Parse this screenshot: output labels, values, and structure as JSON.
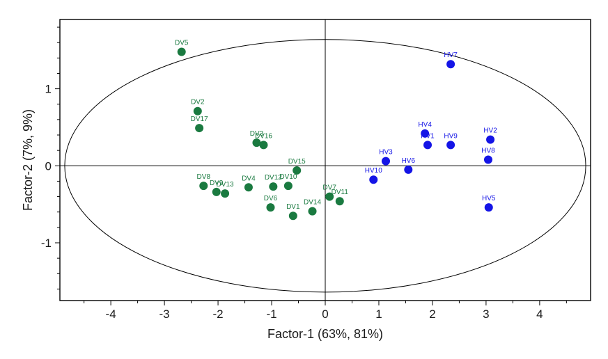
{
  "chart_data": {
    "type": "scatter",
    "title": "",
    "xlabel": "Factor-1 (63%, 81%)",
    "ylabel": "Factor-2 (7%, 9%)",
    "xlim": [
      -4.95,
      4.95
    ],
    "ylim": [
      -1.75,
      1.9
    ],
    "x_ticks": [
      -4,
      -3,
      -2,
      -1,
      0,
      1,
      2,
      3,
      4
    ],
    "x_minor_step": 0.5,
    "y_ticks": [
      -1,
      0,
      1
    ],
    "y_minor_step": 0.2,
    "ellipse": {
      "center": [
        0,
        0
      ],
      "rx": 4.86,
      "ry": 1.64
    },
    "series": [
      {
        "name": "DV",
        "color": "#1a7a40",
        "points": [
          {
            "label": "DV5",
            "x": -2.68,
            "y": 1.48
          },
          {
            "label": "DV2",
            "x": -2.38,
            "y": 0.71
          },
          {
            "label": "DV17",
            "x": -2.35,
            "y": 0.49
          },
          {
            "label": "DV3",
            "x": -1.28,
            "y": 0.3
          },
          {
            "label": "DV16",
            "x": -1.15,
            "y": 0.27
          },
          {
            "label": "DV15",
            "x": -0.53,
            "y": -0.06
          },
          {
            "label": "DV8",
            "x": -2.27,
            "y": -0.26
          },
          {
            "label": "DV9",
            "x": -2.03,
            "y": -0.34
          },
          {
            "label": "DV13",
            "x": -1.87,
            "y": -0.36
          },
          {
            "label": "DV4",
            "x": -1.43,
            "y": -0.28
          },
          {
            "label": "DV12",
            "x": -0.97,
            "y": -0.27
          },
          {
            "label": "DV10",
            "x": -0.69,
            "y": -0.26
          },
          {
            "label": "DV6",
            "x": -1.02,
            "y": -0.54
          },
          {
            "label": "DV1",
            "x": -0.6,
            "y": -0.65
          },
          {
            "label": "DV14",
            "x": -0.24,
            "y": -0.59
          },
          {
            "label": "DV7",
            "x": 0.08,
            "y": -0.4
          },
          {
            "label": "DV11",
            "x": 0.27,
            "y": -0.46
          }
        ]
      },
      {
        "name": "HV",
        "color": "#1414e6",
        "points": [
          {
            "label": "HV7",
            "x": 2.34,
            "y": 1.32
          },
          {
            "label": "HV4",
            "x": 1.86,
            "y": 0.42
          },
          {
            "label": "HV1",
            "x": 1.91,
            "y": 0.27
          },
          {
            "label": "HV9",
            "x": 2.34,
            "y": 0.27
          },
          {
            "label": "HV2",
            "x": 3.08,
            "y": 0.34
          },
          {
            "label": "HV8",
            "x": 3.04,
            "y": 0.08
          },
          {
            "label": "HV3",
            "x": 1.13,
            "y": 0.06
          },
          {
            "label": "HV6",
            "x": 1.55,
            "y": -0.05
          },
          {
            "label": "HV10",
            "x": 0.9,
            "y": -0.18
          },
          {
            "label": "HV5",
            "x": 3.05,
            "y": -0.54
          }
        ]
      }
    ]
  }
}
